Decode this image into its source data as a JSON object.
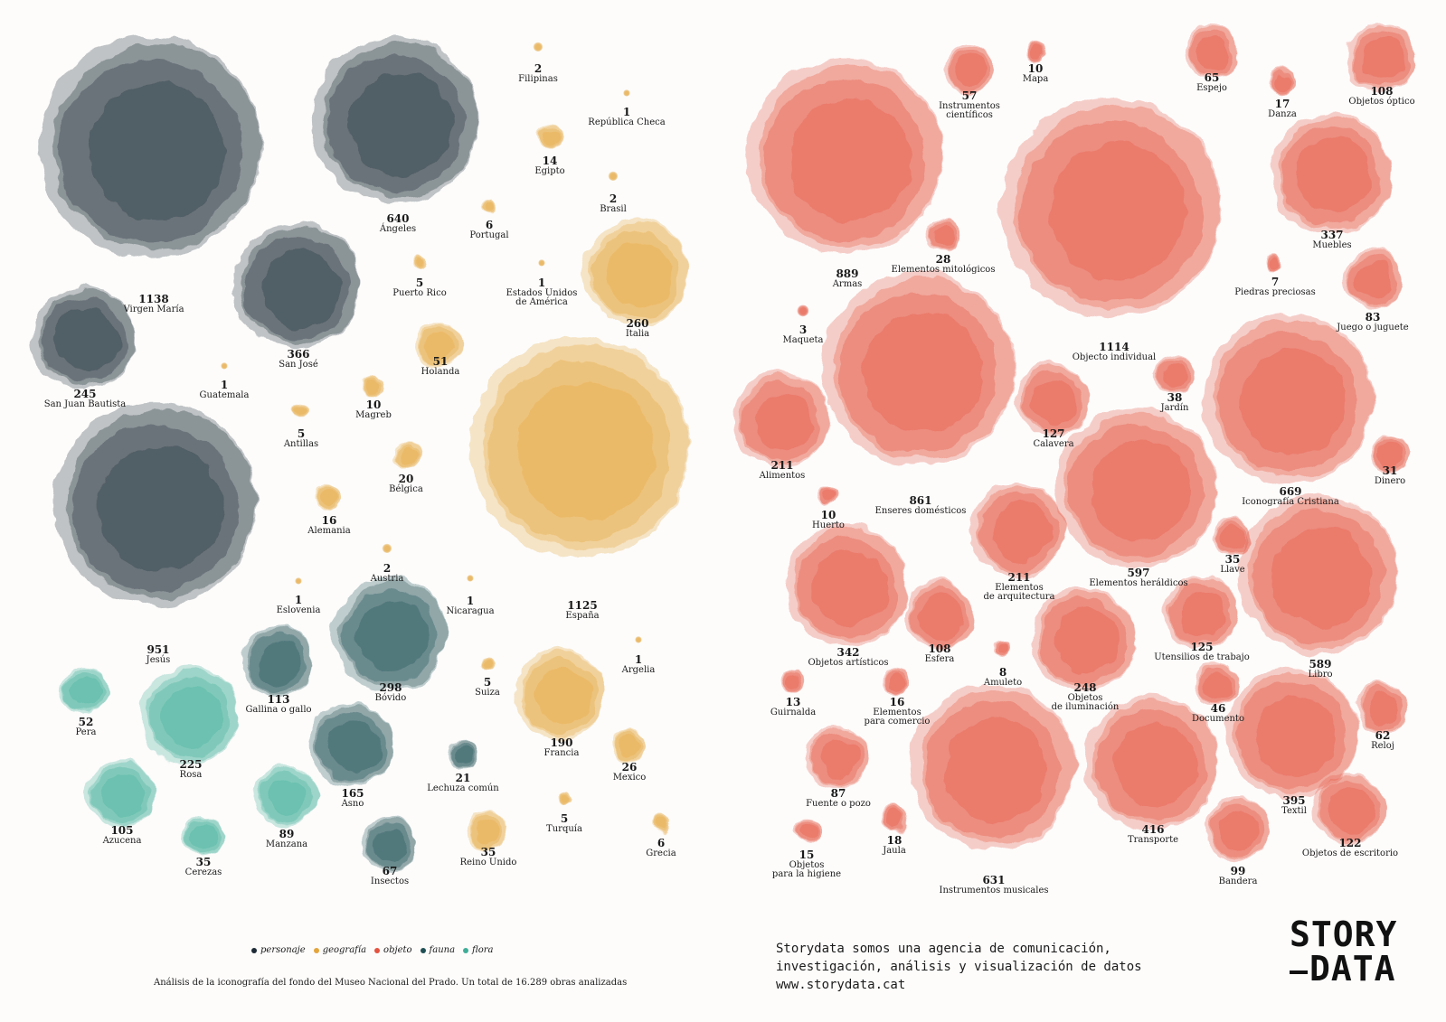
{
  "chart_data": {
    "type": "bubble",
    "categories": [
      {
        "key": "personaje",
        "label": "personaje",
        "color": "#1e2b36"
      },
      {
        "key": "geografia",
        "label": "geografía",
        "color": "#e3a53c"
      },
      {
        "key": "objeto",
        "label": "objeto",
        "color": "#e4533f"
      },
      {
        "key": "fauna",
        "label": "fauna",
        "color": "#1f4f55"
      },
      {
        "key": "flora",
        "label": "flora",
        "color": "#3fae98"
      }
    ],
    "items": [
      {
        "value": 1138,
        "name": "Virgen María",
        "cat": "personaje"
      },
      {
        "value": 640,
        "name": "Ángeles",
        "cat": "personaje"
      },
      {
        "value": 366,
        "name": "San José",
        "cat": "personaje"
      },
      {
        "value": 245,
        "name": "San Juan Bautista",
        "cat": "personaje"
      },
      {
        "value": 951,
        "name": "Jesús",
        "cat": "personaje"
      },
      {
        "value": 2,
        "name": "Filipinas",
        "cat": "geografia"
      },
      {
        "value": 1,
        "name": "República Checa",
        "cat": "geografia"
      },
      {
        "value": 14,
        "name": "Egipto",
        "cat": "geografia"
      },
      {
        "value": 2,
        "name": "Brasil",
        "cat": "geografia"
      },
      {
        "value": 6,
        "name": "Portugal",
        "cat": "geografia"
      },
      {
        "value": 5,
        "name": "Puerto Rico",
        "cat": "geografia"
      },
      {
        "value": 1,
        "name": "Estados Unidos\nde América",
        "cat": "geografia"
      },
      {
        "value": 260,
        "name": "Italia",
        "cat": "geografia"
      },
      {
        "value": 51,
        "name": "Holanda",
        "cat": "geografia"
      },
      {
        "value": 1,
        "name": "Guatemala",
        "cat": "geografia"
      },
      {
        "value": 10,
        "name": "Magreb",
        "cat": "geografia"
      },
      {
        "value": 5,
        "name": "Antillas",
        "cat": "geografia"
      },
      {
        "value": 20,
        "name": "Bélgica",
        "cat": "geografia"
      },
      {
        "value": 16,
        "name": "Alemania",
        "cat": "geografia"
      },
      {
        "value": 2,
        "name": "Austria",
        "cat": "geografia"
      },
      {
        "value": 1,
        "name": "Eslovenia",
        "cat": "geografia"
      },
      {
        "value": 1,
        "name": "Nicaragua",
        "cat": "geografia"
      },
      {
        "value": 1125,
        "name": "España",
        "cat": "geografia"
      },
      {
        "value": 1,
        "name": "Argelia",
        "cat": "geografia"
      },
      {
        "value": 5,
        "name": "Suiza",
        "cat": "geografia"
      },
      {
        "value": 190,
        "name": "Francia",
        "cat": "geografia"
      },
      {
        "value": 26,
        "name": "Mexico",
        "cat": "geografia"
      },
      {
        "value": 5,
        "name": "Turquía",
        "cat": "geografia"
      },
      {
        "value": 35,
        "name": "Reino Unido",
        "cat": "geografia"
      },
      {
        "value": 6,
        "name": "Grecia",
        "cat": "geografia"
      },
      {
        "value": 52,
        "name": "Pera",
        "cat": "flora"
      },
      {
        "value": 225,
        "name": "Rosa",
        "cat": "flora"
      },
      {
        "value": 105,
        "name": "Azucena",
        "cat": "flora"
      },
      {
        "value": 35,
        "name": "Cerezas",
        "cat": "flora"
      },
      {
        "value": 89,
        "name": "Manzana",
        "cat": "flora"
      },
      {
        "value": 113,
        "name": "Gallina o gallo",
        "cat": "fauna"
      },
      {
        "value": 298,
        "name": "Bóvido",
        "cat": "fauna"
      },
      {
        "value": 165,
        "name": "Asno",
        "cat": "fauna"
      },
      {
        "value": 21,
        "name": "Lechuza común",
        "cat": "fauna"
      },
      {
        "value": 67,
        "name": "Insectos",
        "cat": "fauna"
      },
      {
        "value": 10,
        "name": "Mapa",
        "cat": "objeto"
      },
      {
        "value": 57,
        "name": "Instrumentos\ncientíficos",
        "cat": "objeto"
      },
      {
        "value": 65,
        "name": "Espejo",
        "cat": "objeto"
      },
      {
        "value": 17,
        "name": "Danza",
        "cat": "objeto"
      },
      {
        "value": 108,
        "name": "Objetos óptico",
        "cat": "objeto"
      },
      {
        "value": 889,
        "name": "Armas",
        "cat": "objeto"
      },
      {
        "value": 28,
        "name": "Elementos mitológicos",
        "cat": "objeto"
      },
      {
        "value": 1114,
        "name": "Objecto individual",
        "cat": "objeto"
      },
      {
        "value": 337,
        "name": "Muebles",
        "cat": "objeto"
      },
      {
        "value": 7,
        "name": "Piedras preciosas",
        "cat": "objeto"
      },
      {
        "value": 83,
        "name": "Juego o juguete",
        "cat": "objeto"
      },
      {
        "value": 3,
        "name": "Maqueta",
        "cat": "objeto"
      },
      {
        "value": 38,
        "name": "Jardín",
        "cat": "objeto"
      },
      {
        "value": 127,
        "name": "Calavera",
        "cat": "objeto"
      },
      {
        "value": 211,
        "name": "Alimentos",
        "cat": "objeto"
      },
      {
        "value": 861,
        "name": "Enseres domésticos",
        "cat": "objeto"
      },
      {
        "value": 669,
        "name": "Iconografía Cristiana",
        "cat": "objeto"
      },
      {
        "value": 31,
        "name": "Dinero",
        "cat": "objeto"
      },
      {
        "value": 10,
        "name": "Huerto",
        "cat": "objeto"
      },
      {
        "value": 211,
        "name": "Elementos\nde arquitectura",
        "cat": "objeto"
      },
      {
        "value": 597,
        "name": "Elementos heráldicos",
        "cat": "objeto"
      },
      {
        "value": 35,
        "name": "Llave",
        "cat": "objeto"
      },
      {
        "value": 342,
        "name": "Objetos artísticos",
        "cat": "objeto"
      },
      {
        "value": 108,
        "name": "Esfera",
        "cat": "objeto"
      },
      {
        "value": 8,
        "name": "Amuleto",
        "cat": "objeto"
      },
      {
        "value": 125,
        "name": "Utensilios de trabajo",
        "cat": "objeto"
      },
      {
        "value": 589,
        "name": "Libro",
        "cat": "objeto"
      },
      {
        "value": 13,
        "name": "Guirnalda",
        "cat": "objeto"
      },
      {
        "value": 16,
        "name": "Elementos\npara comercio",
        "cat": "objeto"
      },
      {
        "value": 248,
        "name": "Objetos\nde iluminación",
        "cat": "objeto"
      },
      {
        "value": 46,
        "name": "Documento",
        "cat": "objeto"
      },
      {
        "value": 62,
        "name": "Reloj",
        "cat": "objeto"
      },
      {
        "value": 87,
        "name": "Fuente o pozo",
        "cat": "objeto"
      },
      {
        "value": 395,
        "name": "Textil",
        "cat": "objeto"
      },
      {
        "value": 15,
        "name": "Objetos\npara la higiene",
        "cat": "objeto"
      },
      {
        "value": 18,
        "name": "Jaula",
        "cat": "objeto"
      },
      {
        "value": 631,
        "name": "Instrumentos musicales",
        "cat": "objeto"
      },
      {
        "value": 416,
        "name": "Transporte",
        "cat": "objeto"
      },
      {
        "value": 99,
        "name": "Bandera",
        "cat": "objeto"
      },
      {
        "value": 122,
        "name": "Objetos de escritorio",
        "cat": "objeto"
      }
    ]
  },
  "footnote": "Análisis de la iconografía del fondo del Museo Nacional del Prado. Un total de 16.289 obras analizadas",
  "tagline": [
    "Storydata somos una agencia de comunicación,",
    "investigación, análisis y visualización de datos",
    "www.storydata.cat"
  ],
  "logo": {
    "line1": "STORY",
    "line2": "DATA"
  }
}
